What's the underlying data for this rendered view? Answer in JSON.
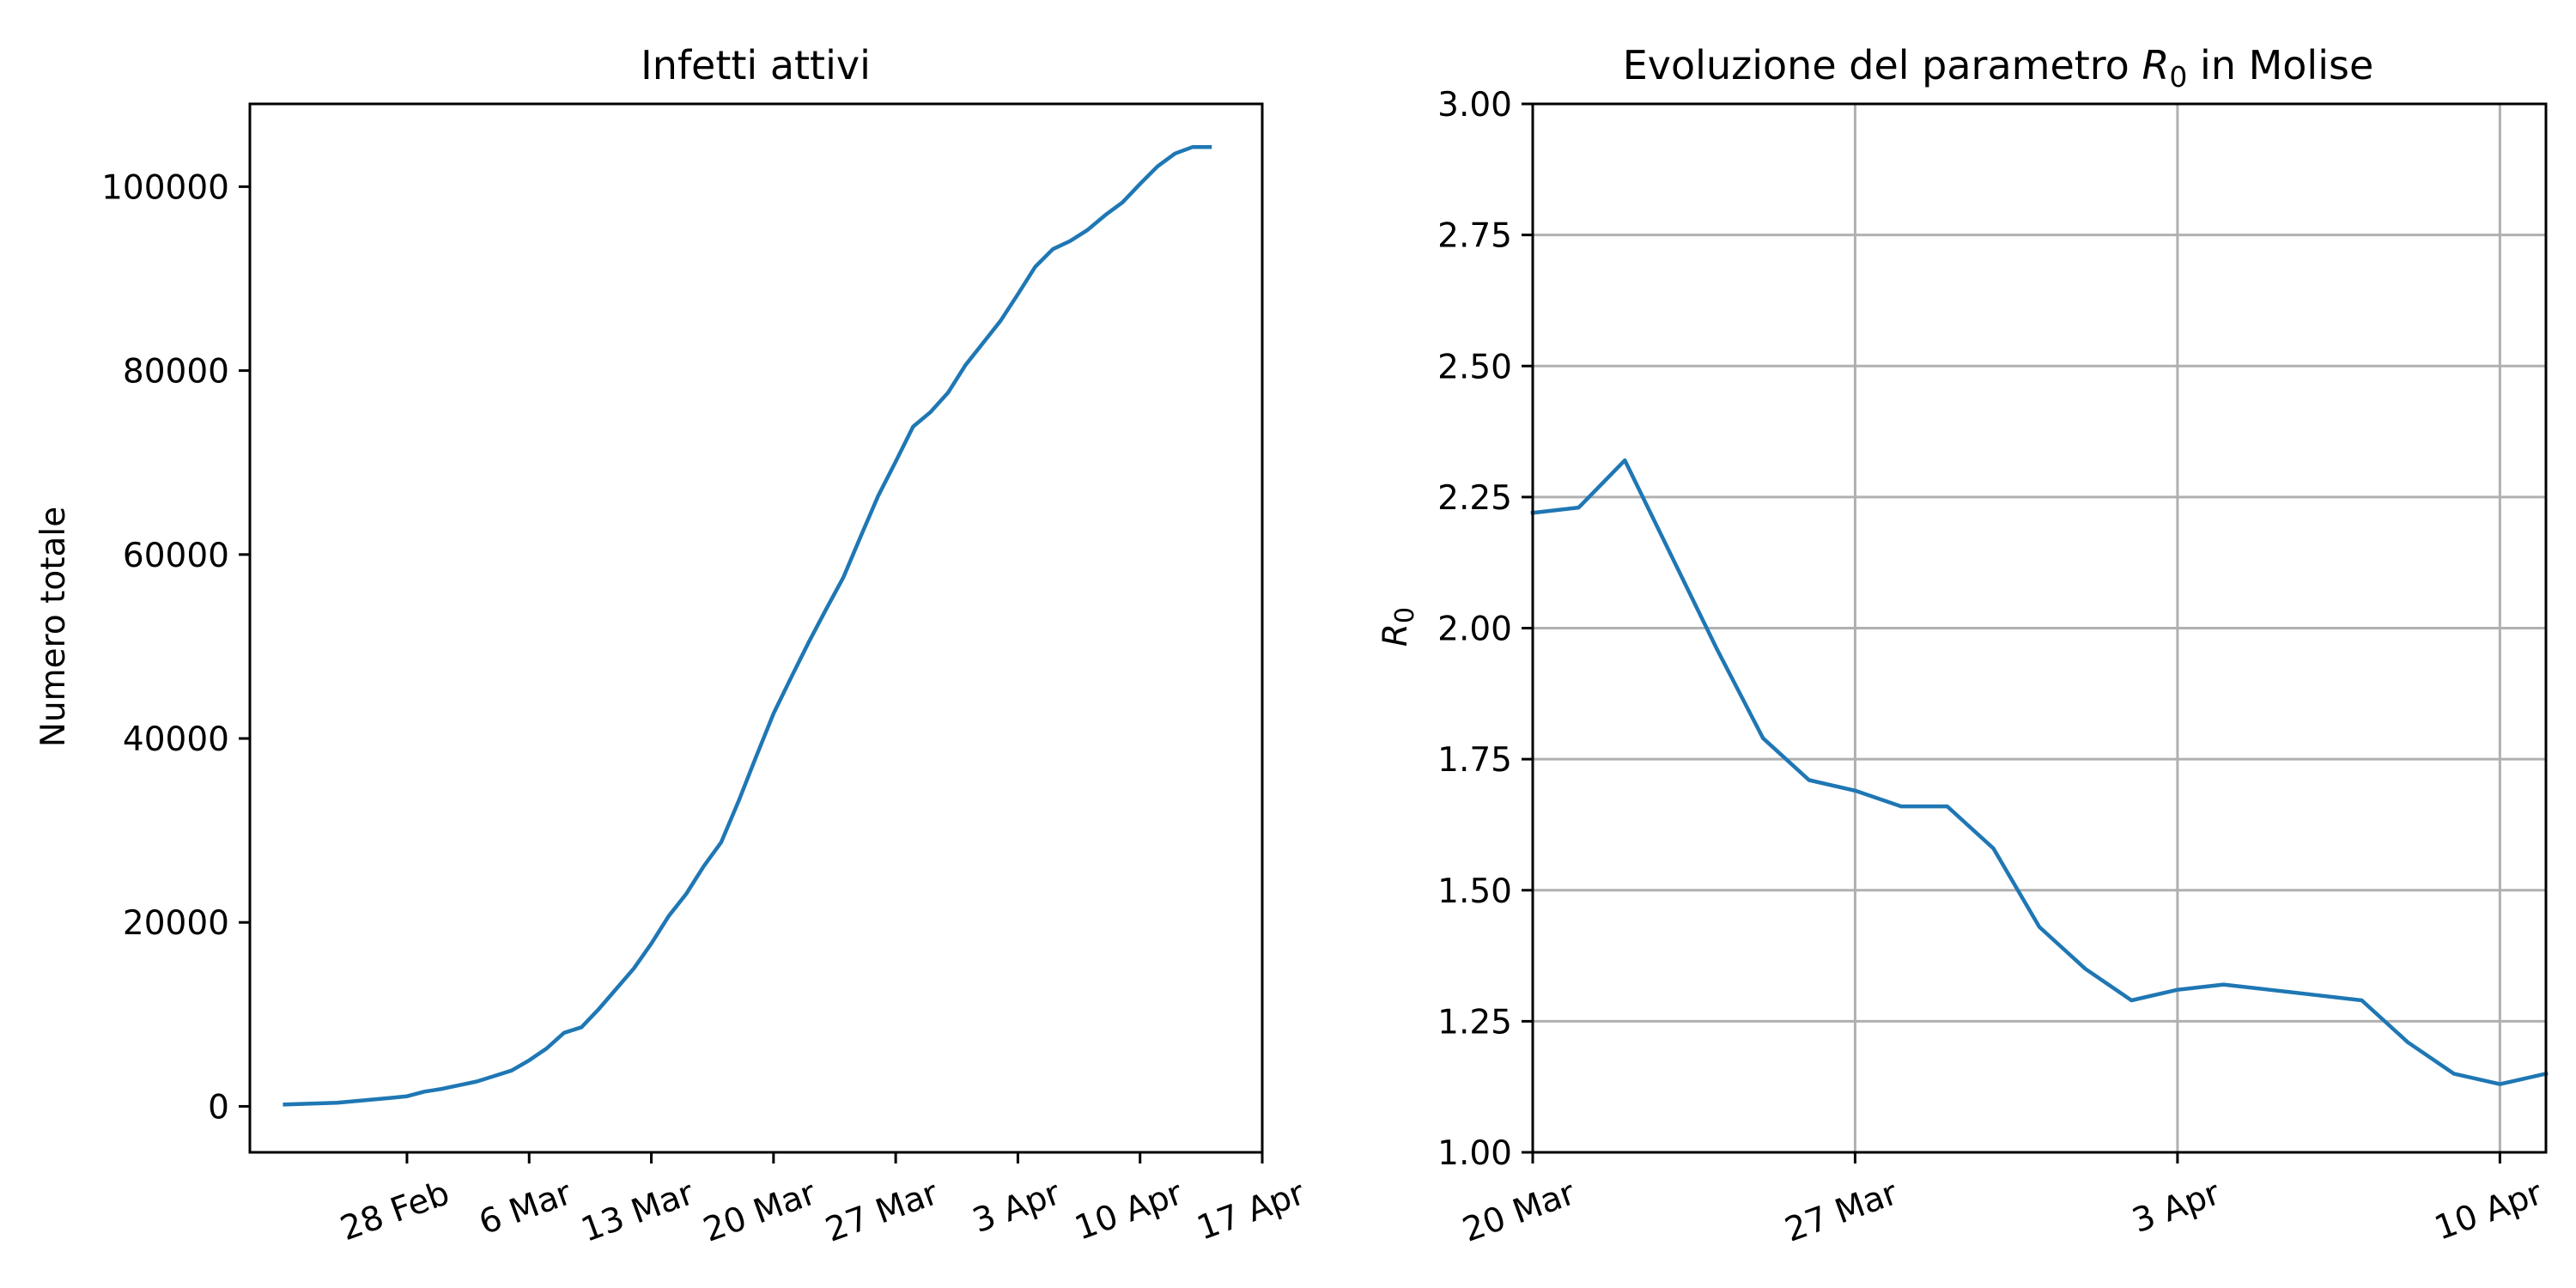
{
  "colors": {
    "series": "#1f77b4",
    "grid": "#b0b0b0",
    "axes": "#000000"
  },
  "chart_data": [
    {
      "type": "line",
      "title": "Infetti attivi",
      "xlabel": "",
      "ylabel": "Numero totale",
      "grid": false,
      "x_tick_labels": [
        "28 Feb",
        "6 Mar",
        "13 Mar",
        "20 Mar",
        "27 Mar",
        "3 Apr",
        "10 Apr",
        "17 Apr"
      ],
      "y_tick_labels": [
        "0",
        "20000",
        "40000",
        "60000",
        "80000",
        "100000"
      ],
      "xlim": [
        "2020-02-19",
        "2020-04-17"
      ],
      "ylim": [
        -5000,
        109000
      ],
      "series": [
        {
          "x": [
            "2020-02-21",
            "2020-02-24",
            "2020-02-27",
            "2020-02-28",
            "2020-02-29",
            "2020-03-01",
            "2020-03-02",
            "2020-03-03",
            "2020-03-04",
            "2020-03-05",
            "2020-03-06",
            "2020-03-07",
            "2020-03-08",
            "2020-03-09",
            "2020-03-10",
            "2020-03-11",
            "2020-03-12",
            "2020-03-13",
            "2020-03-14",
            "2020-03-15",
            "2020-03-16",
            "2020-03-17",
            "2020-03-18",
            "2020-03-19",
            "2020-03-20",
            "2020-03-21",
            "2020-03-22",
            "2020-03-23",
            "2020-03-24",
            "2020-03-25",
            "2020-03-26",
            "2020-03-27",
            "2020-03-28",
            "2020-03-29",
            "2020-03-30",
            "2020-03-31",
            "2020-04-01",
            "2020-04-02",
            "2020-04-03",
            "2020-04-04",
            "2020-04-05",
            "2020-04-06",
            "2020-04-07",
            "2020-04-08",
            "2020-04-09",
            "2020-04-10",
            "2020-04-11",
            "2020-04-12",
            "2020-04-13",
            "2020-04-14"
          ],
          "values": [
            200,
            400,
            900,
            1100,
            1600,
            1900,
            2300,
            2700,
            3300,
            3900,
            5000,
            6300,
            8000,
            8600,
            10600,
            12800,
            15000,
            17700,
            20700,
            23100,
            26100,
            28700,
            33200,
            38000,
            42700,
            46600,
            50400,
            54000,
            57500,
            62000,
            66400,
            70100,
            73900,
            75500,
            77600,
            80600,
            83000,
            85400,
            88300,
            91300,
            93200,
            94100,
            95300,
            96900,
            98300,
            100300,
            102200,
            103600,
            104300,
            104300
          ]
        }
      ]
    },
    {
      "type": "line",
      "title": "Evoluzione del parametro R0 in Molise",
      "title_parts": {
        "before": "Evoluzione del parametro ",
        "symbol": "R",
        "subscript": "0",
        "after": " in Molise"
      },
      "xlabel": "",
      "ylabel": "R0",
      "ylabel_parts": {
        "symbol": "R",
        "subscript": "0"
      },
      "grid": true,
      "x_tick_labels": [
        "20 Mar",
        "27 Mar",
        "3 Apr",
        "10 Apr"
      ],
      "y_tick_labels": [
        "1.00",
        "1.25",
        "1.50",
        "1.75",
        "2.00",
        "2.25",
        "2.50",
        "2.75",
        "3.00"
      ],
      "xlim": [
        "2020-03-20",
        "2020-04-11"
      ],
      "ylim": [
        1.0,
        3.0
      ],
      "series": [
        {
          "x": [
            "2020-03-20",
            "2020-03-21",
            "2020-03-22",
            "2020-03-23",
            "2020-03-24",
            "2020-03-25",
            "2020-03-26",
            "2020-03-27",
            "2020-03-28",
            "2020-03-29",
            "2020-03-30",
            "2020-03-31",
            "2020-04-01",
            "2020-04-02",
            "2020-04-03",
            "2020-04-04",
            "2020-04-05",
            "2020-04-06",
            "2020-04-07",
            "2020-04-08",
            "2020-04-09",
            "2020-04-10",
            "2020-04-11"
          ],
          "values": [
            2.22,
            2.23,
            2.32,
            2.14,
            1.96,
            1.79,
            1.71,
            1.69,
            1.66,
            1.66,
            1.58,
            1.43,
            1.35,
            1.29,
            1.31,
            1.32,
            1.31,
            1.3,
            1.29,
            1.21,
            1.15,
            1.13,
            1.15
          ]
        }
      ]
    }
  ]
}
